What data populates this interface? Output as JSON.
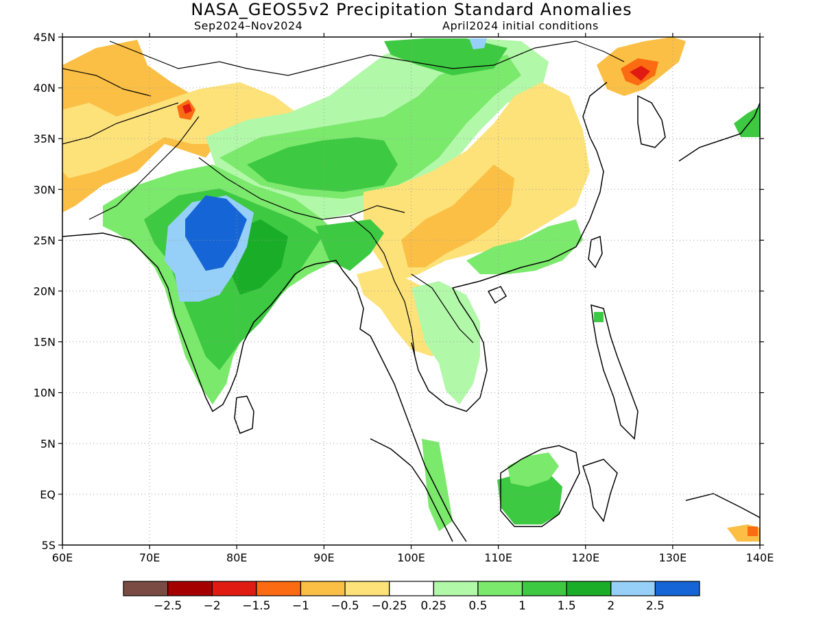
{
  "title": "NASA_GEOS5v2 Precipitation Standard Anomalies",
  "subtitle_left": "Sep2024–Nov2024",
  "subtitle_right": "April2024 initial conditions",
  "map": {
    "lon_range": [
      60,
      140
    ],
    "lat_range": [
      -5,
      45
    ],
    "lon_ticks": [
      {
        "value": 60,
        "label": "60E"
      },
      {
        "value": 70,
        "label": "70E"
      },
      {
        "value": 80,
        "label": "80E"
      },
      {
        "value": 90,
        "label": "90E"
      },
      {
        "value": 100,
        "label": "100E"
      },
      {
        "value": 110,
        "label": "110E"
      },
      {
        "value": 120,
        "label": "120E"
      },
      {
        "value": 130,
        "label": "130E"
      },
      {
        "value": 140,
        "label": "140E"
      }
    ],
    "lat_ticks": [
      {
        "value": 45,
        "label": "45N"
      },
      {
        "value": 40,
        "label": "40N"
      },
      {
        "value": 35,
        "label": "35N"
      },
      {
        "value": 30,
        "label": "30N"
      },
      {
        "value": 25,
        "label": "25N"
      },
      {
        "value": 20,
        "label": "20N"
      },
      {
        "value": 15,
        "label": "15N"
      },
      {
        "value": 10,
        "label": "10N"
      },
      {
        "value": 5,
        "label": "5N"
      },
      {
        "value": 0,
        "label": "EQ"
      },
      {
        "value": -5,
        "label": "5S"
      }
    ],
    "grid": "dotted",
    "colors": {
      "dry_light": "#fde27a",
      "dry": "#fbbf45",
      "dry_strong": "#fb6b12",
      "dry_extreme": "#e01b12",
      "wet_light": "#b2f8a9",
      "wet": "#7be96c",
      "wet_mid": "#3ec942",
      "wet_strong": "#1aae28",
      "wet_very": "#96cff7",
      "wet_extreme": "#1565d6"
    }
  },
  "colorbar": {
    "colors": [
      "#7a4b43",
      "#a50000",
      "#e01b12",
      "#fb6b12",
      "#fbbf45",
      "#fde27a",
      "#ffffff",
      "#b2f8a9",
      "#7be96c",
      "#3ec942",
      "#1aae28",
      "#96cff7",
      "#1565d6"
    ],
    "labels": [
      "−2.5",
      "−2",
      "−1.5",
      "−1",
      "−0.5",
      "−0.25",
      "0.25",
      "0.5",
      "1",
      "1.5",
      "2",
      "2.5"
    ]
  }
}
